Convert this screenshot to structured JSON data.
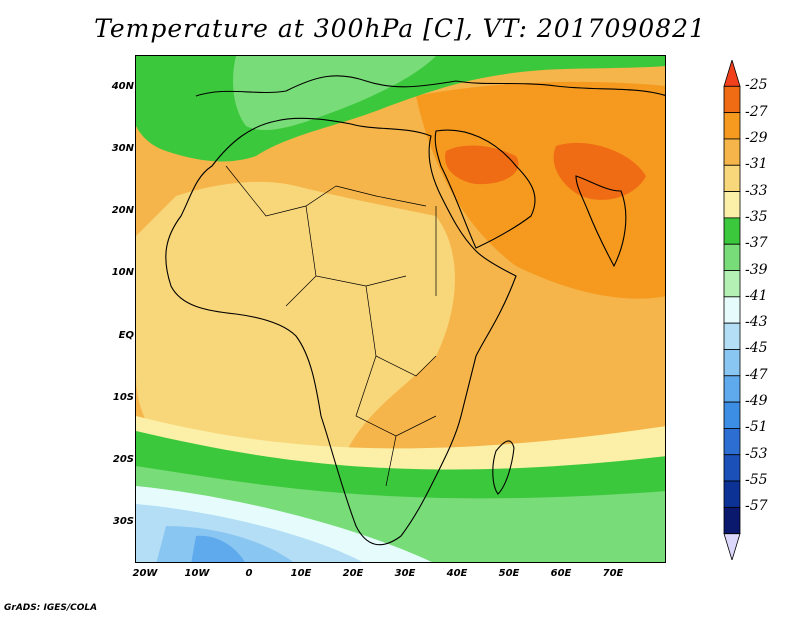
{
  "title": "Temperature at 300hPa [C], VT: 2017090821",
  "credit": "GrADS: IGES/COLA",
  "lat_labels": [
    "40N",
    "30N",
    "20N",
    "10N",
    "EQ",
    "10S",
    "20S",
    "30S"
  ],
  "lon_labels": [
    "20W",
    "10W",
    "0",
    "10E",
    "20E",
    "30E",
    "40E",
    "50E",
    "60E",
    "70E"
  ],
  "colorbar": {
    "labels": [
      "-25",
      "-27",
      "-29",
      "-31",
      "-33",
      "-35",
      "-37",
      "-39",
      "-41",
      "-43",
      "-45",
      "-47",
      "-49",
      "-51",
      "-53",
      "-55",
      "-57"
    ],
    "colors": [
      "#f0401c",
      "#f06c14",
      "#f59a1f",
      "#f5b54a",
      "#f8d67a",
      "#fcf0a8",
      "#3cc83c",
      "#78dc78",
      "#b4f0b4",
      "#e6fcfc",
      "#b4def6",
      "#8ac6f2",
      "#5eaaec",
      "#3c8ee4",
      "#2c6ed2",
      "#1a50b8",
      "#0c3296",
      "#0a186e",
      "#dcd8fc"
    ]
  },
  "map": {
    "fields": {
      "background": "#f5b54a",
      "warm_west": "#f8d67a",
      "arabia_india": "#f59a1f",
      "hot_core": "#f06c14",
      "north_green": "#3cc83c",
      "north_light": "#78dc78",
      "south_band1": "#fcf0a8",
      "south_band2": "#3cc83c",
      "south_band3": "#78dc78",
      "south_cyan": "#e6fcfc",
      "south_blue1": "#b4def6",
      "south_blue2": "#8ac6f2",
      "south_blue3": "#5eaaec"
    }
  }
}
